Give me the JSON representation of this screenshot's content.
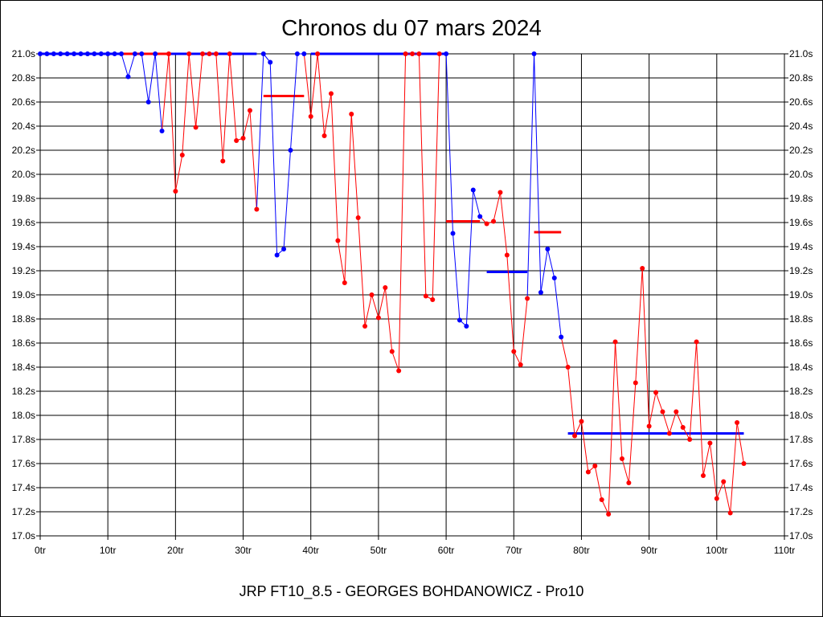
{
  "chart_data": {
    "type": "line",
    "title": "Chronos du 07 mars 2024",
    "subtitle": "JRP FT10_8.5 - GEORGES BOHDANOWICZ - Pro10",
    "xlabel": "",
    "ylabel": "",
    "xlim": [
      0,
      110
    ],
    "ylim": [
      17.0,
      21.0
    ],
    "grid": true,
    "x_ticks": [
      0,
      10,
      20,
      30,
      40,
      50,
      60,
      70,
      80,
      90,
      100,
      110
    ],
    "x_tick_labels": [
      "0tr",
      "10tr",
      "20tr",
      "30tr",
      "40tr",
      "50tr",
      "60tr",
      "70tr",
      "80tr",
      "90tr",
      "100tr",
      "110tr"
    ],
    "y_ticks": [
      17.0,
      17.2,
      17.4,
      17.6,
      17.8,
      18.0,
      18.2,
      18.4,
      18.6,
      18.8,
      19.0,
      19.2,
      19.4,
      19.6,
      19.8,
      20.0,
      20.2,
      20.4,
      20.6,
      20.8,
      21.0
    ],
    "y_tick_labels": [
      "17.0s",
      "17.2s",
      "17.4s",
      "17.6s",
      "17.8s",
      "18.0s",
      "18.2s",
      "18.4s",
      "18.6s",
      "18.8s",
      "19.0s",
      "19.2s",
      "19.4s",
      "19.6s",
      "19.8s",
      "20.0s",
      "20.2s",
      "20.4s",
      "20.6s",
      "20.8s",
      "21.0s"
    ],
    "colors": {
      "red": "#ff0000",
      "blue": "#0000ff"
    },
    "series": [
      {
        "color": "blue",
        "points": [
          [
            0,
            21.0
          ],
          [
            1,
            21.0
          ],
          [
            2,
            21.0
          ],
          [
            3,
            21.0
          ],
          [
            4,
            21.0
          ],
          [
            5,
            21.0
          ],
          [
            6,
            21.0
          ],
          [
            7,
            21.0
          ],
          [
            8,
            21.0
          ],
          [
            9,
            21.0
          ],
          [
            10,
            21.0
          ],
          [
            11,
            21.0
          ],
          [
            12,
            21.0
          ],
          [
            13,
            20.81
          ],
          [
            14,
            21.0
          ],
          [
            15,
            21.0
          ],
          [
            16,
            20.6
          ],
          [
            17,
            21.0
          ],
          [
            18,
            20.36
          ]
        ]
      },
      {
        "color": "red",
        "points": [
          [
            19,
            21.0
          ],
          [
            20,
            19.86
          ],
          [
            21,
            20.16
          ],
          [
            22,
            21.0
          ],
          [
            23,
            20.39
          ],
          [
            24,
            21.0
          ],
          [
            25,
            21.0
          ],
          [
            26,
            21.0
          ],
          [
            27,
            20.11
          ],
          [
            28,
            21.0
          ],
          [
            29,
            20.28
          ],
          [
            30,
            20.3
          ],
          [
            31,
            20.53
          ],
          [
            32,
            19.71
          ]
        ]
      },
      {
        "color": "blue",
        "points": [
          [
            33,
            21.0
          ],
          [
            34,
            20.93
          ],
          [
            35,
            19.33
          ],
          [
            36,
            19.38
          ],
          [
            37,
            20.2
          ],
          [
            38,
            21.0
          ],
          [
            39,
            21.0
          ]
        ]
      },
      {
        "color": "red",
        "points": [
          [
            40,
            20.48
          ],
          [
            41,
            21.0
          ],
          [
            42,
            20.32
          ],
          [
            43,
            20.67
          ],
          [
            44,
            19.45
          ],
          [
            45,
            19.1
          ],
          [
            46,
            20.5
          ],
          [
            47,
            19.64
          ],
          [
            48,
            18.74
          ],
          [
            49,
            19.0
          ],
          [
            50,
            18.81
          ],
          [
            51,
            19.06
          ],
          [
            52,
            18.53
          ],
          [
            53,
            18.37
          ],
          [
            54,
            21.0
          ],
          [
            55,
            21.0
          ],
          [
            56,
            21.0
          ],
          [
            57,
            18.99
          ],
          [
            58,
            18.96
          ],
          [
            59,
            21.0
          ]
        ]
      },
      {
        "color": "blue",
        "points": [
          [
            60,
            21.0
          ],
          [
            61,
            19.51
          ],
          [
            62,
            18.79
          ],
          [
            63,
            18.74
          ],
          [
            64,
            19.87
          ],
          [
            65,
            19.65
          ]
        ]
      },
      {
        "color": "red",
        "points": [
          [
            66,
            19.59
          ],
          [
            67,
            19.61
          ],
          [
            68,
            19.85
          ],
          [
            69,
            19.33
          ],
          [
            70,
            18.53
          ],
          [
            71,
            18.42
          ],
          [
            72,
            18.97
          ]
        ]
      },
      {
        "color": "blue",
        "points": [
          [
            73,
            21.0
          ],
          [
            74,
            19.02
          ],
          [
            75,
            19.38
          ],
          [
            76,
            19.14
          ],
          [
            77,
            18.65
          ]
        ]
      },
      {
        "color": "red",
        "points": [
          [
            78,
            18.4
          ],
          [
            79,
            17.83
          ],
          [
            80,
            17.95
          ],
          [
            81,
            17.53
          ],
          [
            82,
            17.58
          ],
          [
            83,
            17.3
          ],
          [
            84,
            17.18
          ],
          [
            85,
            18.61
          ],
          [
            86,
            17.64
          ],
          [
            87,
            17.44
          ],
          [
            88,
            18.27
          ],
          [
            89,
            19.22
          ],
          [
            90,
            17.91
          ],
          [
            91,
            18.19
          ],
          [
            92,
            18.03
          ],
          [
            93,
            17.85
          ],
          [
            94,
            18.03
          ],
          [
            95,
            17.9
          ],
          [
            96,
            17.8
          ],
          [
            97,
            18.61
          ],
          [
            98,
            17.5
          ],
          [
            99,
            17.77
          ],
          [
            100,
            17.31
          ],
          [
            101,
            17.45
          ],
          [
            102,
            17.19
          ],
          [
            103,
            17.94
          ],
          [
            104,
            17.6
          ]
        ]
      }
    ],
    "averages": [
      {
        "color": "blue",
        "x": [
          0,
          19
        ],
        "y": 21.0
      },
      {
        "color": "red",
        "x": [
          12,
          19
        ],
        "y": 21.0
      },
      {
        "color": "blue",
        "x": [
          19,
          32
        ],
        "y": 21.0
      },
      {
        "color": "red",
        "x": [
          33,
          39
        ],
        "y": 20.65
      },
      {
        "color": "blue",
        "x": [
          40,
          60
        ],
        "y": 21.0
      },
      {
        "color": "red",
        "x": [
          60,
          65
        ],
        "y": 19.61
      },
      {
        "color": "blue",
        "x": [
          66,
          72
        ],
        "y": 19.19
      },
      {
        "color": "red",
        "x": [
          73,
          77
        ],
        "y": 19.52
      },
      {
        "color": "blue",
        "x": [
          78,
          104
        ],
        "y": 17.85
      }
    ]
  }
}
